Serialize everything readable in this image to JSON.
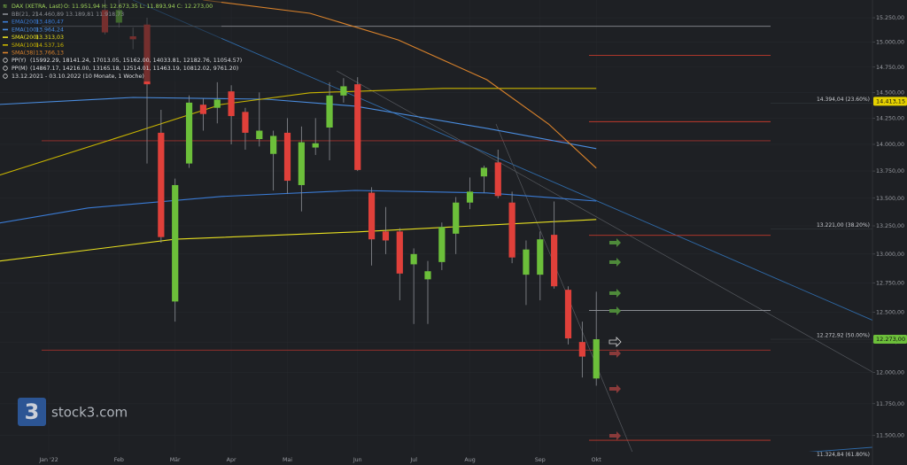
{
  "chart_data": {
    "type": "candlestick",
    "header": {
      "name": "DAX (XETRA, Last)",
      "ohlc_text": "O: 11.951,94  H: 12.673,35  L: 11.893,94  C: 12.273,00"
    },
    "period": "13.12.2021 - 03.10.2022  (10 Monate, 1 Woche)",
    "log_scale": true,
    "grid": true,
    "up_color": "#6cbf3a",
    "down_color": "#e0403a",
    "categories": [
      null,
      null,
      null,
      "Jan '22",
      null,
      null,
      null,
      null,
      "Feb",
      null,
      null,
      null,
      "Mär",
      null,
      null,
      null,
      "Apr",
      null,
      null,
      null,
      "Mai",
      null,
      null,
      null,
      null,
      "Jun",
      null,
      null,
      null,
      "Jul",
      null,
      null,
      null,
      "Aug",
      null,
      null,
      null,
      null,
      "Sep",
      null,
      null,
      null,
      "Okt"
    ],
    "open": [
      null,
      null,
      null,
      null,
      null,
      null,
      null,
      15330,
      15200,
      15060,
      15180,
      14110,
      12590,
      13820,
      14380,
      14350,
      14510,
      14310,
      14050,
      13910,
      14110,
      13620,
      13970,
      14160,
      14470,
      14580,
      13550,
      13200,
      13200,
      12910,
      12780,
      12930,
      13180,
      13460,
      13700,
      13830,
      13460,
      12820,
      12820,
      13170,
      12690,
      12250,
      11951.94
    ],
    "high": [
      null,
      null,
      null,
      null,
      null,
      null,
      null,
      15500,
      15450,
      15150,
      15250,
      14330,
      13680,
      14470,
      14440,
      14600,
      14570,
      14350,
      14500,
      14130,
      14250,
      14170,
      14250,
      14600,
      14640,
      14650,
      13600,
      13420,
      13230,
      13050,
      12940,
      13280,
      13510,
      13690,
      13800,
      13950,
      13560,
      13120,
      13200,
      13470,
      12720,
      12420,
      12673.35
    ],
    "low": [
      null,
      null,
      null,
      null,
      null,
      null,
      null,
      15080,
      15150,
      14930,
      13820,
      13100,
      12420,
      13780,
      14130,
      14200,
      14000,
      13950,
      13980,
      13570,
      13540,
      13380,
      13900,
      13850,
      14400,
      13750,
      12900,
      13000,
      12600,
      12400,
      12400,
      12860,
      13000,
      13400,
      13550,
      13500,
      12920,
      12560,
      12600,
      12700,
      12230,
      11960,
      11893.94
    ],
    "close": [
      null,
      null,
      null,
      null,
      null,
      null,
      null,
      15100,
      15330,
      15030,
      14580,
      13150,
      13620,
      14400,
      14290,
      14430,
      14270,
      14110,
      14130,
      14080,
      13660,
      14020,
      14010,
      14470,
      14560,
      13760,
      13130,
      13120,
      12830,
      13000,
      12850,
      13240,
      13460,
      13560,
      13780,
      13520,
      12970,
      13040,
      13130,
      12720,
      12280,
      12130,
      12273
    ],
    "ylim": [
      11375,
      15434
    ],
    "yticks": [
      {
        "value": 15250,
        "label": "15.250,00"
      },
      {
        "value": 15000,
        "label": "15.000,00"
      },
      {
        "value": 14750,
        "label": "14.750,00"
      },
      {
        "value": 14500,
        "label": "14.500,00"
      },
      {
        "value": 14250,
        "label": "14.250,00"
      },
      {
        "value": 14000,
        "label": "14.000,00"
      },
      {
        "value": 13750,
        "label": "13.750,00"
      },
      {
        "value": 13500,
        "label": "13.500,00"
      },
      {
        "value": 13250,
        "label": "13.250,00"
      },
      {
        "value": 13000,
        "label": "13.000,00"
      },
      {
        "value": 12750,
        "label": "12.750,00"
      },
      {
        "value": 12500,
        "label": "12.500,00"
      },
      {
        "value": 12250,
        "label": "12.250,00"
      },
      {
        "value": 12000,
        "label": "12.000,00"
      },
      {
        "value": 11750,
        "label": "11.750,00"
      },
      {
        "value": 11500,
        "label": "11.500,00"
      }
    ],
    "series": [
      {
        "name": "BB(21, 2)",
        "value_text": "14.460,89  13.189,81  11.918,73",
        "color": "#8a8d93"
      },
      {
        "name": "EMA(200)",
        "value_text": "13.480,47",
        "color": "#3a7bd5",
        "x": [
          -0.5,
          5.8,
          15.3,
          24.8,
          34.2,
          42
        ],
        "values": [
          13275,
          13411,
          13516,
          13571,
          13548,
          13474
        ]
      },
      {
        "name": "EMA(100)",
        "value_text": "13.964,24",
        "color": "#4a8de0",
        "x": [
          -0.5,
          9,
          18.5,
          24.8,
          34.2,
          42
        ],
        "values": [
          14383,
          14451,
          14434,
          14366,
          14152,
          13960
        ]
      },
      {
        "name": "SMA(200)",
        "value_text": "13.313,03",
        "color": "#e8e020",
        "x": [
          -0.5,
          12,
          25,
          42
        ],
        "values": [
          12939,
          13131,
          13196,
          13307
        ]
      },
      {
        "name": "SMA(100)",
        "value_text": "14.537,16",
        "color": "#c8b400",
        "x": [
          -0.5,
          9,
          15.3,
          21.6,
          31.1,
          42
        ],
        "values": [
          13712,
          14110,
          14383,
          14496,
          14539,
          14539
        ]
      },
      {
        "name": "SMA(38)",
        "value_text": "13.766,13",
        "color": "#d9822b",
        "x": [
          14,
          21.6,
          27.9,
          34.2,
          38.6,
          42
        ],
        "values": [
          15434,
          15296,
          15023,
          14625,
          14194,
          13777
        ]
      }
    ],
    "pivots": [
      {
        "name": "PP(Y)",
        "text": "(15992.29, 18141.24, 17013.05, 15162.00, 14033.81, 12182.76, 11054.57)",
        "lines": [
          {
            "value": 15162,
            "color": "#8a8d93"
          },
          {
            "value": 14033.81,
            "color": "#a0302c"
          },
          {
            "value": 12182.76,
            "color": "#a0302c"
          }
        ]
      },
      {
        "name": "PP(M)",
        "text": "(14867.17, 14216.00, 13165.18, 12514.01, 11463.19, 10812.02, 9761.20)",
        "lines": [
          {
            "value": 14867.17,
            "color": "#c0392b"
          },
          {
            "value": 14216,
            "color": "#c0392b"
          },
          {
            "value": 13165.18,
            "color": "#c0392b"
          },
          {
            "value": 12514.01,
            "color": "#8a8d93"
          },
          {
            "value": 11463.19,
            "color": "#c0392b"
          }
        ]
      }
    ],
    "fib_levels": [
      {
        "value": 14394.04,
        "label": "14.394,04 (23.60%)"
      },
      {
        "value": 13221,
        "label": "13.221,00 (38.20%)"
      },
      {
        "value": 12272.92,
        "label": "12.272,92 (50.00%)"
      },
      {
        "value": 11324.84,
        "label": "11.324,84 (61.80%)"
      }
    ],
    "price_tags": [
      {
        "value": 14413.15,
        "label": "14.413,15",
        "color": "#e6d200"
      },
      {
        "value": 12273,
        "label": "12.273,00",
        "color": "#6cbf3a"
      }
    ],
    "watermark": {
      "logo": "3",
      "text": "stock3.com"
    }
  }
}
